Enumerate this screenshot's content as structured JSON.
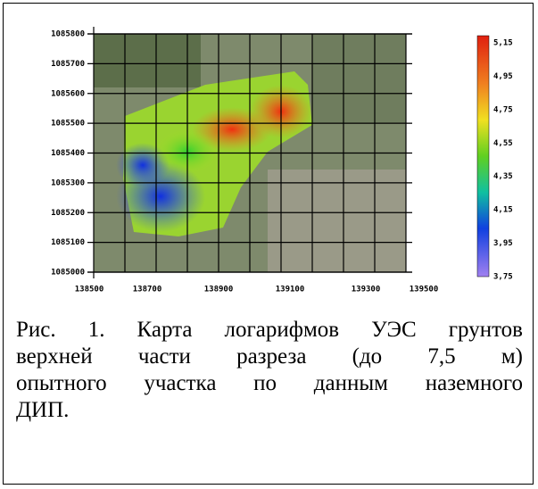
{
  "figure": {
    "y_labels": [
      "1085800",
      "1085700",
      "1085600",
      "1085500",
      "1085400",
      "1085300",
      "1085200",
      "1085100",
      "1085000"
    ],
    "x_labels": [
      "138500",
      "138700",
      "138900",
      "139100",
      "139300",
      "139500"
    ],
    "colorbar_labels": [
      "5,15",
      "4,95",
      "4,75",
      "4,55",
      "4,35",
      "4,15",
      "3,95",
      "3,75"
    ]
  },
  "caption": {
    "lines": [
      "Рис. 1. Карта логарифмов УЭС грунтов",
      "верхней части разреза (до 7,5 м)",
      "опытного участка по данным наземного",
      "ДИП."
    ]
  }
}
